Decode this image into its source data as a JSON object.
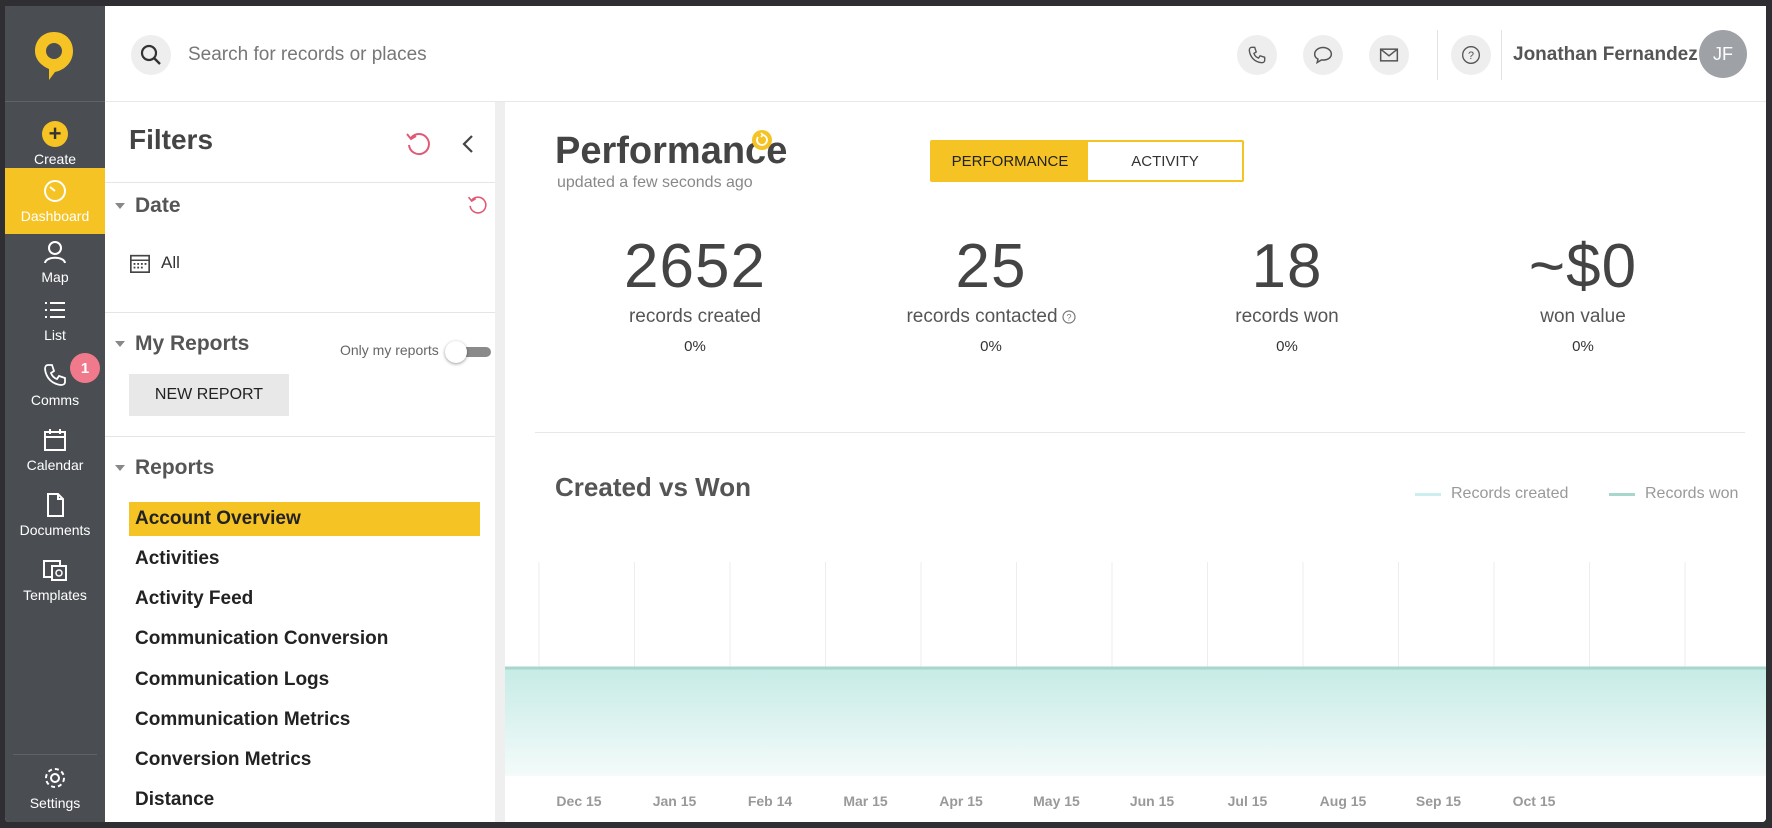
{
  "sidebar": {
    "items": [
      {
        "label": "Create",
        "icon": "plus-icon"
      },
      {
        "label": "Dashboard",
        "icon": "gauge-icon"
      },
      {
        "label": "Map",
        "icon": "person-pin-icon"
      },
      {
        "label": "List",
        "icon": "list-icon"
      },
      {
        "label": "Comms",
        "icon": "phone-icon",
        "badge": "1"
      },
      {
        "label": "Calendar",
        "icon": "calendar-icon"
      },
      {
        "label": "Documents",
        "icon": "document-icon"
      },
      {
        "label": "Templates",
        "icon": "templates-icon"
      },
      {
        "label": "Settings",
        "icon": "gear-icon"
      }
    ]
  },
  "header": {
    "search_placeholder": "Search for records or places",
    "user_name": "Jonathan Fernandez",
    "avatar_initials": "JF"
  },
  "filters": {
    "title": "Filters",
    "date": {
      "heading": "Date",
      "value": "All"
    },
    "my_reports": {
      "heading": "My Reports",
      "toggle_label": "Only my reports",
      "new_report_label": "NEW REPORT"
    },
    "reports": {
      "heading": "Reports",
      "items": [
        "Account Overview",
        "Activities",
        "Activity Feed",
        "Communication Conversion",
        "Communication Logs",
        "Communication Metrics",
        "Conversion Metrics",
        "Distance"
      ],
      "selected": "Account Overview"
    }
  },
  "main": {
    "title": "Performance",
    "updated": "updated a few seconds ago",
    "tabs": {
      "performance": "PERFORMANCE",
      "activity": "ACTIVITY"
    },
    "kpis": [
      {
        "value": "2652",
        "label": "records created",
        "pct": "0%"
      },
      {
        "value": "25",
        "label": "records contacted",
        "pct": "0%",
        "info": true
      },
      {
        "value": "18",
        "label": "records won",
        "pct": "0%"
      },
      {
        "value": "~$0",
        "label": "won value",
        "pct": "0%"
      }
    ]
  },
  "chart_data": {
    "type": "area",
    "title": "Created vs Won",
    "x": [
      "Dec 15",
      "Jan 15",
      "Feb 14",
      "Mar 15",
      "Apr 15",
      "May 15",
      "Jun 15",
      "Jul 15",
      "Aug 15",
      "Sep 15",
      "Oct 15"
    ],
    "series": [
      {
        "name": "Records created",
        "values": [
          0,
          0,
          0,
          0,
          0,
          0,
          0,
          0,
          0,
          0,
          0
        ],
        "color": "#cdeeee"
      },
      {
        "name": "Records won",
        "values": [
          0,
          0,
          0,
          0,
          0,
          0,
          0,
          0,
          0,
          0,
          0
        ],
        "color": "#a9d6cc"
      }
    ],
    "legend_position": "top-right",
    "grid": true
  },
  "colors": {
    "accent": "#f6c325",
    "sidebar": "#4a4d52",
    "badge": "#f07a8c"
  }
}
